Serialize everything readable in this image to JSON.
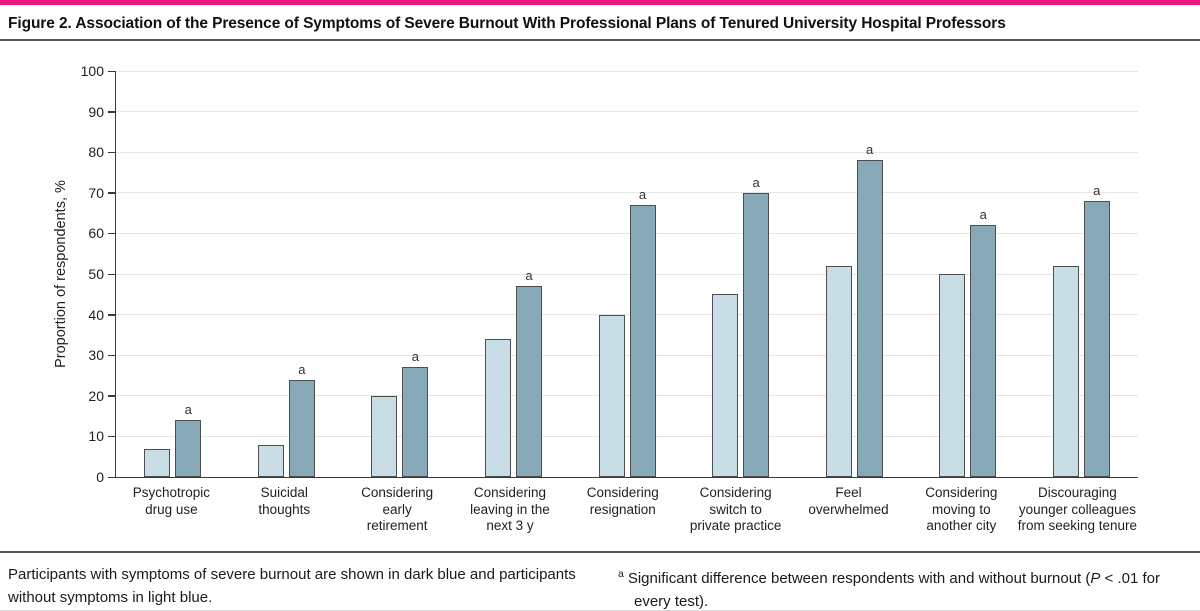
{
  "figure": {
    "title": "Figure 2. Association of the Presence of Symptoms of Severe Burnout With Professional Plans of Tenured University Hospital Professors",
    "accent_color": "#e8197d",
    "rule_color": "#595959"
  },
  "chart_data": {
    "type": "bar",
    "title": "",
    "xlabel": "",
    "ylabel": "Proportion of respondents, %",
    "ylim": [
      0,
      100
    ],
    "yticks": [
      0,
      10,
      20,
      30,
      40,
      50,
      60,
      70,
      80,
      90,
      100
    ],
    "grid": true,
    "legend_position": "none",
    "categories": [
      "Psychotropic\ndrug use",
      "Suicidal\nthoughts",
      "Considering\nearly\nretirement",
      "Considering\nleaving in the\nnext 3 y",
      "Considering\nresignation",
      "Considering\nswitch to\nprivate practice",
      "Feel\noverwhelmed",
      "Considering\nmoving to\nanother city",
      "Discouraging\nyounger colleagues\nfrom seeking tenure"
    ],
    "series": [
      {
        "name": "Participants without symptoms of burnout",
        "color": "#c9dde6",
        "values": [
          7,
          8,
          20,
          34,
          40,
          45,
          52,
          50,
          52
        ]
      },
      {
        "name": "Participants with symptoms of severe burnout",
        "color": "#87a9b8",
        "values": [
          14,
          24,
          27,
          47,
          67,
          70,
          78,
          62,
          68
        ]
      }
    ],
    "significance_marker": "a",
    "significant_categories": [
      true,
      true,
      true,
      true,
      true,
      true,
      true,
      true,
      true
    ],
    "bar_border_color": "#4d4d4d",
    "gridline_color": "#e6e6e6"
  },
  "footnotes": {
    "legend_note": "Participants with symptoms of severe burnout are shown in dark blue and participants without symptoms in light blue.",
    "significance": {
      "marker": "a",
      "prefix": "Significant difference between respondents with and without burnout (",
      "p": "P",
      "suffix": " < .01 for every test)."
    }
  }
}
